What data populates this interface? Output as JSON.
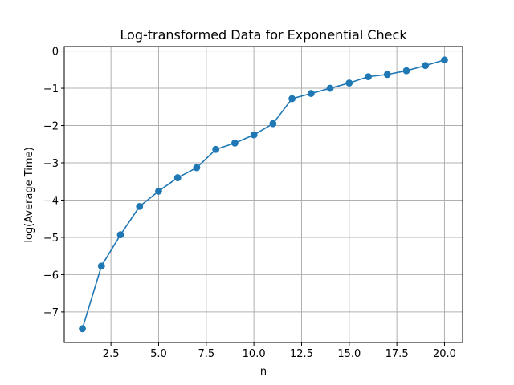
{
  "chart_data": {
    "type": "line",
    "title": "Log-transformed Data for Exponential Check",
    "xlabel": "n",
    "ylabel": "log(Average Time)",
    "xlim": [
      0.05,
      20.95
    ],
    "ylim": [
      -7.82,
      0.12
    ],
    "xticks": [
      2.5,
      5.0,
      7.5,
      10.0,
      12.5,
      15.0,
      17.5,
      20.0
    ],
    "xtick_labels": [
      "2.5",
      "5.0",
      "7.5",
      "10.0",
      "12.5",
      "15.0",
      "17.5",
      "20.0"
    ],
    "yticks": [
      0,
      -1,
      -2,
      -3,
      -4,
      -5,
      -6,
      -7
    ],
    "ytick_labels": [
      "0",
      "−1",
      "−2",
      "−3",
      "−4",
      "−5",
      "−6",
      "−7"
    ],
    "grid": true,
    "series": [
      {
        "color": "#1f77b4",
        "marker": "circle",
        "x": [
          1,
          2,
          3,
          4,
          5,
          6,
          7,
          8,
          9,
          10,
          11,
          12,
          13,
          14,
          15,
          16,
          17,
          18,
          19,
          20
        ],
        "y": [
          -7.45,
          -5.77,
          -4.93,
          -4.17,
          -3.76,
          -3.4,
          -3.13,
          -2.64,
          -2.47,
          -2.25,
          -1.95,
          -1.28,
          -1.14,
          -1.0,
          -0.86,
          -0.69,
          -0.63,
          -0.53,
          -0.39,
          -0.24
        ]
      }
    ]
  }
}
